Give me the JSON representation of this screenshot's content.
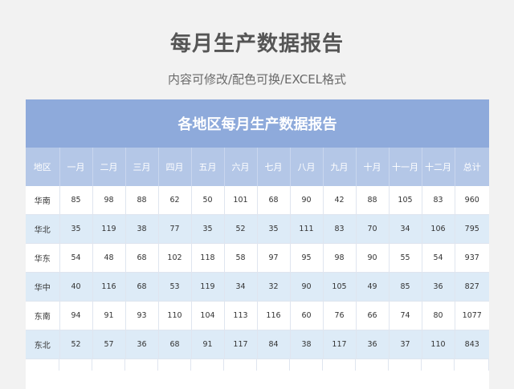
{
  "title": "每月生产数据报告",
  "subtitle": "内容可修改/配色可换/EXCEL格式",
  "table_title": "各地区每月生产数据报告",
  "headers": [
    "地区",
    "一月",
    "二月",
    "三月",
    "四月",
    "五月",
    "六月",
    "七月",
    "八月",
    "九月",
    "十月",
    "十一月",
    "十二月",
    "总计"
  ],
  "rows": [
    [
      "华南",
      "85",
      "98",
      "88",
      "62",
      "50",
      "101",
      "68",
      "90",
      "42",
      "88",
      "105",
      "83",
      "960"
    ],
    [
      "华北",
      "35",
      "119",
      "38",
      "77",
      "35",
      "52",
      "35",
      "111",
      "83",
      "70",
      "34",
      "106",
      "795"
    ],
    [
      "华东",
      "54",
      "48",
      "68",
      "102",
      "118",
      "58",
      "97",
      "95",
      "98",
      "90",
      "55",
      "54",
      "937"
    ],
    [
      "华中",
      "40",
      "116",
      "68",
      "53",
      "119",
      "34",
      "32",
      "90",
      "105",
      "49",
      "85",
      "36",
      "827"
    ],
    [
      "东南",
      "94",
      "91",
      "93",
      "110",
      "104",
      "113",
      "116",
      "60",
      "76",
      "66",
      "74",
      "80",
      "1077"
    ],
    [
      "东北",
      "52",
      "57",
      "36",
      "68",
      "91",
      "117",
      "84",
      "38",
      "117",
      "36",
      "37",
      "110",
      "843"
    ]
  ],
  "colors": {
    "banner": "#8eaadb",
    "header_row": "#b4c7e7",
    "stripe": "#ddebf7"
  }
}
